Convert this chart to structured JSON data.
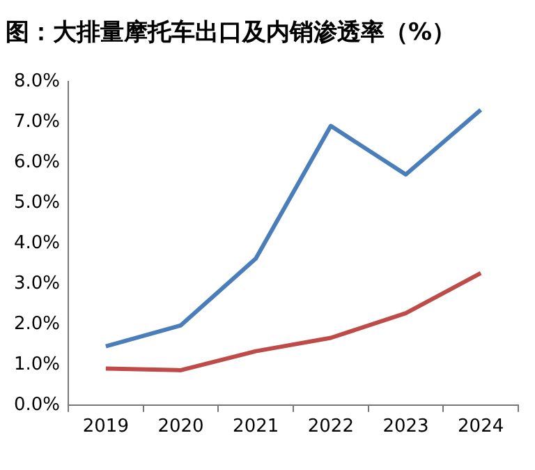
{
  "chart_data": {
    "type": "line",
    "title": "图：大排量摩托车出口及内销渗透率（%）",
    "categories": [
      "2019",
      "2020",
      "2021",
      "2022",
      "2023",
      "2024"
    ],
    "series": [
      {
        "color": "#4a7ebb",
        "values": [
          1.45,
          1.97,
          3.62,
          6.9,
          5.7,
          7.3
        ]
      },
      {
        "color": "#be4b48",
        "values": [
          0.9,
          0.86,
          1.33,
          1.66,
          2.27,
          3.26
        ]
      }
    ],
    "ylim": [
      0,
      8
    ],
    "yticks": [
      {
        "value": 0,
        "label": "0.0%"
      },
      {
        "value": 1,
        "label": "1.0%"
      },
      {
        "value": 2,
        "label": "2.0%"
      },
      {
        "value": 3,
        "label": "3.0%"
      },
      {
        "value": 4,
        "label": "4.0%"
      },
      {
        "value": 5,
        "label": "5.0%"
      },
      {
        "value": 6,
        "label": "6.0%"
      },
      {
        "value": 7,
        "label": "7.0%"
      },
      {
        "value": 8,
        "label": "8.0%"
      }
    ],
    "grid": false,
    "legend": false,
    "marker": "none",
    "line_style": "solid"
  }
}
